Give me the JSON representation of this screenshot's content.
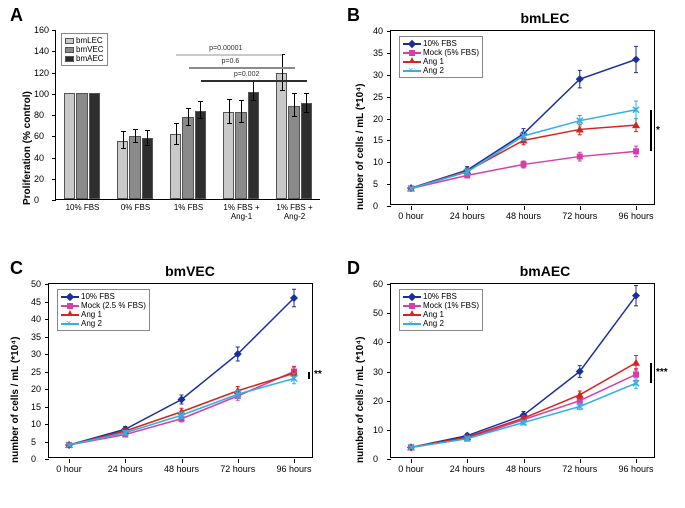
{
  "panels": {
    "A": {
      "label": "A",
      "type": "bar",
      "ylabel": "Proliferation (% control)",
      "ylim": [
        0,
        160
      ],
      "ytick_step": 20,
      "categories": [
        "10% FBS",
        "0% FBS",
        "1% FBS",
        "1% FBS + Ang-1",
        "1% FBS + Ang-2"
      ],
      "series": [
        {
          "name": "bmLEC",
          "color": "#c9c9c9",
          "values": [
            100,
            55,
            61,
            82,
            119
          ],
          "err": [
            0,
            8,
            10,
            11,
            17
          ]
        },
        {
          "name": "bmVEC",
          "color": "#8a8a8a",
          "values": [
            100,
            59,
            77,
            82,
            88
          ],
          "err": [
            0,
            6,
            8,
            10,
            11
          ]
        },
        {
          "name": "bmAEC",
          "color": "#2e2e2e",
          "values": [
            100,
            57,
            83,
            101,
            90
          ],
          "err": [
            0,
            7,
            8,
            9,
            9
          ]
        }
      ],
      "pvalues": [
        {
          "label": "p=0.00001",
          "from_group": 2,
          "from_series": 0,
          "to_group": 4,
          "to_series": 0,
          "y": 137
        },
        {
          "label": "p=0.6",
          "from_group": 2,
          "from_series": 1,
          "to_group": 4,
          "to_series": 1,
          "y": 125
        },
        {
          "label": "p=0.002",
          "from_group": 2,
          "from_series": 2,
          "to_group": 4,
          "to_series": 2,
          "y": 113
        }
      ]
    },
    "B": {
      "label": "B",
      "title": "bmLEC",
      "type": "line",
      "ylabel": "number of cells / mL (*10⁴)",
      "x": [
        0,
        24,
        48,
        72,
        96
      ],
      "xticklabels": [
        "0 hour",
        "24 hours",
        "48 hours",
        "72 hours",
        "96 hours"
      ],
      "ylim": [
        0,
        40
      ],
      "ytick_step": 5,
      "series": [
        {
          "name": "10% FBS",
          "color": "#1b2f9a",
          "marker": "diamond",
          "values": [
            4.1,
            8.2,
            16.5,
            29.0,
            33.5
          ],
          "err": [
            0.3,
            0.8,
            1.2,
            2.0,
            3.0
          ]
        },
        {
          "name": "Mock (5% FBS)",
          "color": "#d63fa7",
          "marker": "square",
          "values": [
            4.0,
            7.0,
            9.5,
            11.3,
            12.5
          ],
          "err": [
            0.3,
            0.6,
            0.8,
            1.0,
            1.2
          ]
        },
        {
          "name": "Ang 1",
          "color": "#d6241f",
          "marker": "triangle",
          "values": [
            4.0,
            8.0,
            15.0,
            17.5,
            18.5
          ],
          "err": [
            0.3,
            0.7,
            1.0,
            1.2,
            1.5
          ]
        },
        {
          "name": "Ang 2",
          "color": "#2fb0e6",
          "marker": "x",
          "values": [
            4.0,
            7.8,
            16.0,
            19.5,
            22.0
          ],
          "err": [
            0.3,
            0.7,
            1.0,
            1.2,
            2.0
          ]
        }
      ],
      "sig": "*"
    },
    "C": {
      "label": "C",
      "title": "bmVEC",
      "type": "line",
      "ylabel": "number of cells / mL (*10⁴)",
      "x": [
        0,
        24,
        48,
        72,
        96
      ],
      "xticklabels": [
        "0 hour",
        "24 hours",
        "48 hours",
        "72 hours",
        "96 hours"
      ],
      "ylim": [
        0,
        50
      ],
      "ytick_step": 5,
      "series": [
        {
          "name": "10% FBS",
          "color": "#1b2f9a",
          "marker": "diamond",
          "values": [
            4.0,
            8.5,
            17.0,
            30.0,
            46.0
          ],
          "err": [
            0.3,
            0.8,
            1.3,
            2.0,
            2.5
          ]
        },
        {
          "name": "Mock (2.5 % FBS)",
          "color": "#d63fa7",
          "marker": "square",
          "values": [
            4.0,
            7.0,
            11.5,
            18.0,
            25.0
          ],
          "err": [
            0.3,
            0.6,
            0.9,
            1.2,
            1.5
          ]
        },
        {
          "name": "Ang 1",
          "color": "#d6241f",
          "marker": "triangle",
          "values": [
            4.0,
            8.0,
            13.5,
            19.5,
            24.5
          ],
          "err": [
            0.3,
            0.7,
            1.0,
            1.2,
            1.8
          ]
        },
        {
          "name": "Ang 2",
          "color": "#2fb0e6",
          "marker": "x",
          "values": [
            4.0,
            7.5,
            12.5,
            18.5,
            23.0
          ],
          "err": [
            0.3,
            0.6,
            0.9,
            1.1,
            1.5
          ]
        }
      ],
      "sig": "**"
    },
    "D": {
      "label": "D",
      "title": "bmAEC",
      "type": "line",
      "ylabel": "number of cells / mL (*10⁴)",
      "x": [
        0,
        24,
        48,
        72,
        96
      ],
      "xticklabels": [
        "0 hour",
        "24 hours",
        "48 hours",
        "72 hours",
        "96 hours"
      ],
      "ylim": [
        0,
        60
      ],
      "ytick_step": 10,
      "series": [
        {
          "name": "10% FBS",
          "color": "#1b2f9a",
          "marker": "diamond",
          "values": [
            4.0,
            8.0,
            15.0,
            30.0,
            56.0
          ],
          "err": [
            0.3,
            0.8,
            1.3,
            2.0,
            3.5
          ]
        },
        {
          "name": "Mock (1% FBS)",
          "color": "#d63fa7",
          "marker": "square",
          "values": [
            4.0,
            7.0,
            13.5,
            20.0,
            29.0
          ],
          "err": [
            0.3,
            0.6,
            0.9,
            1.2,
            2.0
          ]
        },
        {
          "name": "Ang 1",
          "color": "#d6241f",
          "marker": "triangle",
          "values": [
            4.0,
            7.5,
            14.0,
            22.0,
            33.0
          ],
          "err": [
            0.3,
            0.6,
            0.9,
            1.3,
            2.5
          ]
        },
        {
          "name": "Ang 2",
          "color": "#2fb0e6",
          "marker": "x",
          "values": [
            4.0,
            7.0,
            12.5,
            18.0,
            26.0
          ],
          "err": [
            0.3,
            0.6,
            0.8,
            1.1,
            1.8
          ]
        }
      ],
      "sig": "***"
    }
  }
}
